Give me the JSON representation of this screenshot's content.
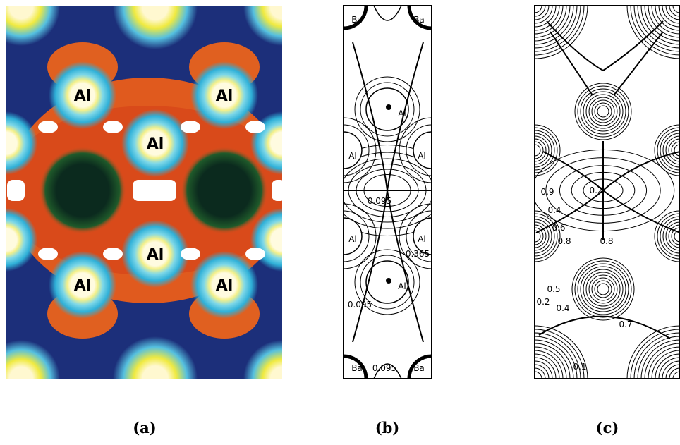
{
  "panels": [
    {
      "caption": "(a)",
      "labels": [
        "Al",
        "Al",
        "Al",
        "Al",
        "Al",
        "Al"
      ]
    },
    {
      "caption": "(b)",
      "labels": [
        "Ba",
        "Ba",
        "Al",
        "Al",
        "Al",
        "Al",
        "Al",
        "Al",
        "Ba",
        "Ba"
      ],
      "contour_labels": [
        "0.095",
        "0.365",
        "0.095",
        "0.095"
      ]
    },
    {
      "caption": "(c)",
      "contour_labels": [
        "0.9",
        "0.2",
        "0.4",
        "0.6",
        "0.8",
        "0.8",
        "0.5",
        "0.2",
        "0.4",
        "0.7",
        "0.1"
      ]
    }
  ]
}
